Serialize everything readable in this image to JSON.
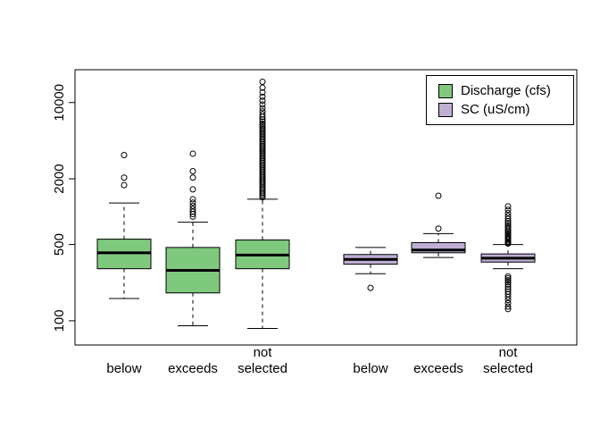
{
  "chart_data": {
    "type": "boxplot",
    "title": "",
    "y_scale": "log10",
    "ylim": [
      60,
      20000
    ],
    "grid": false,
    "legend_position": "top-right",
    "y_ticks": [
      {
        "value": 100,
        "label": "100"
      },
      {
        "value": 500,
        "label": "500"
      },
      {
        "value": 2000,
        "label": "2000"
      },
      {
        "value": 10000,
        "label": "10000"
      }
    ],
    "legend": {
      "items": [
        {
          "label": "Discharge (cfs)",
          "color": "#7FC97F"
        },
        {
          "label": "SC (uS/cm)",
          "color": "#BEAED4"
        }
      ]
    },
    "categories": [
      "below",
      "exceeds",
      "not selected"
    ],
    "boxes": [
      {
        "series": "Discharge (cfs)",
        "category": "below",
        "label_lines": [
          "below"
        ],
        "color": "#7FC97F",
        "whisker_low": 160,
        "q1": 300,
        "median": 420,
        "q3": 560,
        "whisker_high": 1200,
        "outliers": [
          1750,
          2050,
          3300
        ]
      },
      {
        "series": "Discharge (cfs)",
        "category": "exceeds",
        "label_lines": [
          "exceeds"
        ],
        "color": "#7FC97F",
        "whisker_low": 90,
        "q1": 180,
        "median": 290,
        "q3": 470,
        "whisker_high": 800,
        "outliers": [
          900,
          950,
          1000,
          1060,
          1130,
          1210,
          1300,
          1600,
          2050,
          2350,
          3400
        ]
      },
      {
        "series": "Discharge (cfs)",
        "category": "not selected",
        "label_lines": [
          "not",
          "selected"
        ],
        "color": "#7FC97F",
        "whisker_low": 85,
        "q1": 300,
        "median": 400,
        "q3": 550,
        "whisker_high": 1300,
        "outliers": [
          1350,
          1400,
          1450,
          1500,
          1560,
          1620,
          1680,
          1750,
          1820,
          1890,
          1960,
          2040,
          2120,
          2200,
          2290,
          2380,
          2470,
          2570,
          2670,
          2780,
          2890,
          3000,
          3120,
          3250,
          3380,
          3520,
          3660,
          3810,
          3960,
          4120,
          4290,
          4460,
          4640,
          4830,
          5030,
          5230,
          5450,
          5670,
          5900,
          6150,
          6400,
          6700,
          7000,
          7400,
          7800,
          8300,
          8900,
          9600,
          10400,
          11300,
          12400,
          13700,
          15500
        ]
      },
      {
        "series": "SC (uS/cm)",
        "category": "below",
        "label_lines": [
          "below"
        ],
        "color": "#BEAED4",
        "whisker_low": 270,
        "q1": 330,
        "median": 365,
        "q3": 405,
        "whisker_high": 470,
        "outliers": [
          200
        ]
      },
      {
        "series": "SC (uS/cm)",
        "category": "exceeds",
        "label_lines": [
          "exceeds"
        ],
        "color": "#BEAED4",
        "whisker_low": 380,
        "q1": 420,
        "median": 445,
        "q3": 520,
        "whisker_high": 630,
        "outliers": [
          700,
          1400
        ]
      },
      {
        "series": "SC (uS/cm)",
        "category": "not selected",
        "label_lines": [
          "not",
          "selected"
        ],
        "color": "#BEAED4",
        "whisker_low": 300,
        "q1": 345,
        "median": 375,
        "q3": 410,
        "whisker_high": 500,
        "outliers": [
          510,
          520,
          530,
          545,
          560,
          575,
          590,
          610,
          630,
          650,
          670,
          695,
          720,
          750,
          785,
          820,
          860,
          910,
          970,
          1040,
          1120,
          255,
          245,
          235,
          225,
          215,
          205,
          195,
          185,
          175,
          165,
          155,
          145,
          135,
          128
        ]
      }
    ]
  }
}
